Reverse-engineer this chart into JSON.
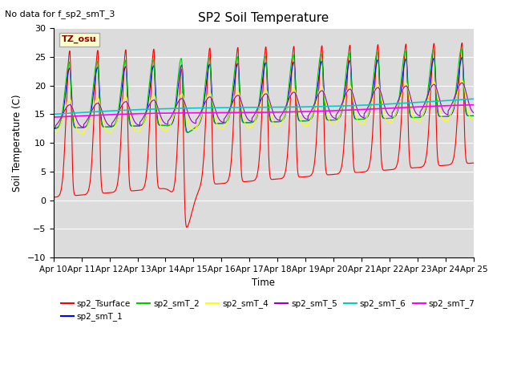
{
  "title": "SP2 Soil Temperature",
  "note": "No data for f_sp2_smT_3",
  "ylabel": "Soil Temperature (C)",
  "xlabel": "Time",
  "tz_label": "TZ_osu",
  "ylim": [
    -10,
    30
  ],
  "xlim": [
    0,
    15
  ],
  "yticks": [
    -10,
    -5,
    0,
    5,
    10,
    15,
    20,
    25,
    30
  ],
  "xtick_labels": [
    "Apr 10",
    "Apr 11",
    "Apr 12",
    "Apr 13",
    "Apr 14",
    "Apr 15",
    "Apr 16",
    "Apr 17",
    "Apr 18",
    "Apr 19",
    "Apr 20",
    "Apr 21",
    "Apr 22",
    "Apr 23",
    "Apr 24",
    "Apr 25"
  ],
  "bg_color": "#dcdcdc",
  "colors": {
    "sp2_Tsurface": "#ff0000",
    "sp2_smT_1": "#0000ff",
    "sp2_smT_2": "#00cc00",
    "sp2_smT_4": "#ffff00",
    "sp2_smT_5": "#9900cc",
    "sp2_smT_6": "#00cccc",
    "sp2_smT_7": "#ff00ff"
  },
  "legend_entries": [
    "sp2_Tsurface",
    "sp2_smT_1",
    "sp2_smT_2",
    "sp2_smT_4",
    "sp2_smT_5",
    "sp2_smT_6",
    "sp2_smT_7"
  ]
}
